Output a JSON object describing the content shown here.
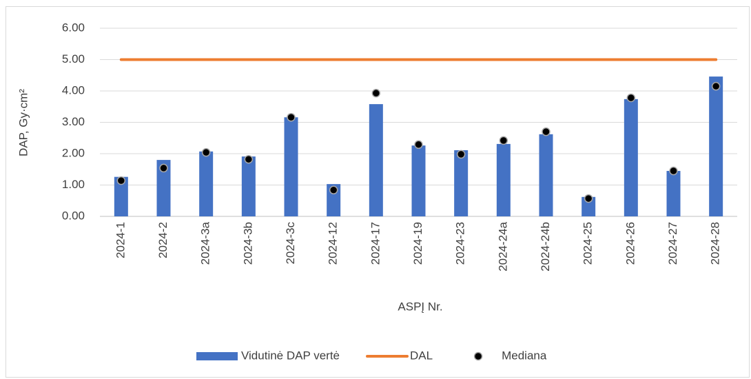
{
  "chart_data": {
    "type": "bar_line_scatter",
    "xlabel": "ASPĮ Nr.",
    "ylabel": "DAP,  Gy·cm²",
    "categories": [
      "2024-1",
      "2024-2",
      "2024-3a",
      "2024-3b",
      "2024-3c",
      "2024-12",
      "2024-17",
      "2024-19",
      "2024-23",
      "2024-24a",
      "2024-24b",
      "2024-25",
      "2024-26",
      "2024-27",
      "2024-28"
    ],
    "series": [
      {
        "name": "Vidutinė DAP vertė",
        "type": "bar",
        "color": "#4472c4",
        "values": [
          1.26,
          1.8,
          2.07,
          1.91,
          3.16,
          1.03,
          3.58,
          2.26,
          2.11,
          2.31,
          2.62,
          0.62,
          3.74,
          1.45,
          4.46
        ]
      },
      {
        "name": "DAL",
        "type": "line",
        "color": "#ed7d31",
        "values": [
          5,
          5,
          5,
          5,
          5,
          5,
          5,
          5,
          5,
          5,
          5,
          5,
          5,
          5,
          5
        ]
      },
      {
        "name": "Mediana",
        "type": "scatter",
        "color": "#000000",
        "values": [
          1.14,
          1.54,
          2.04,
          1.82,
          3.16,
          0.84,
          3.93,
          2.29,
          1.98,
          2.42,
          2.7,
          0.57,
          3.78,
          1.45,
          4.15
        ]
      }
    ],
    "ylim": [
      0,
      6
    ],
    "yticks": [
      {
        "value": 0,
        "label": "0.00"
      },
      {
        "value": 1,
        "label": "1.00"
      },
      {
        "value": 2,
        "label": "2.00"
      },
      {
        "value": 3,
        "label": "3.00"
      },
      {
        "value": 4,
        "label": "4.00"
      },
      {
        "value": 5,
        "label": "5.00"
      },
      {
        "value": 6,
        "label": "6.00"
      }
    ],
    "grid": true,
    "legend": "bottom"
  }
}
